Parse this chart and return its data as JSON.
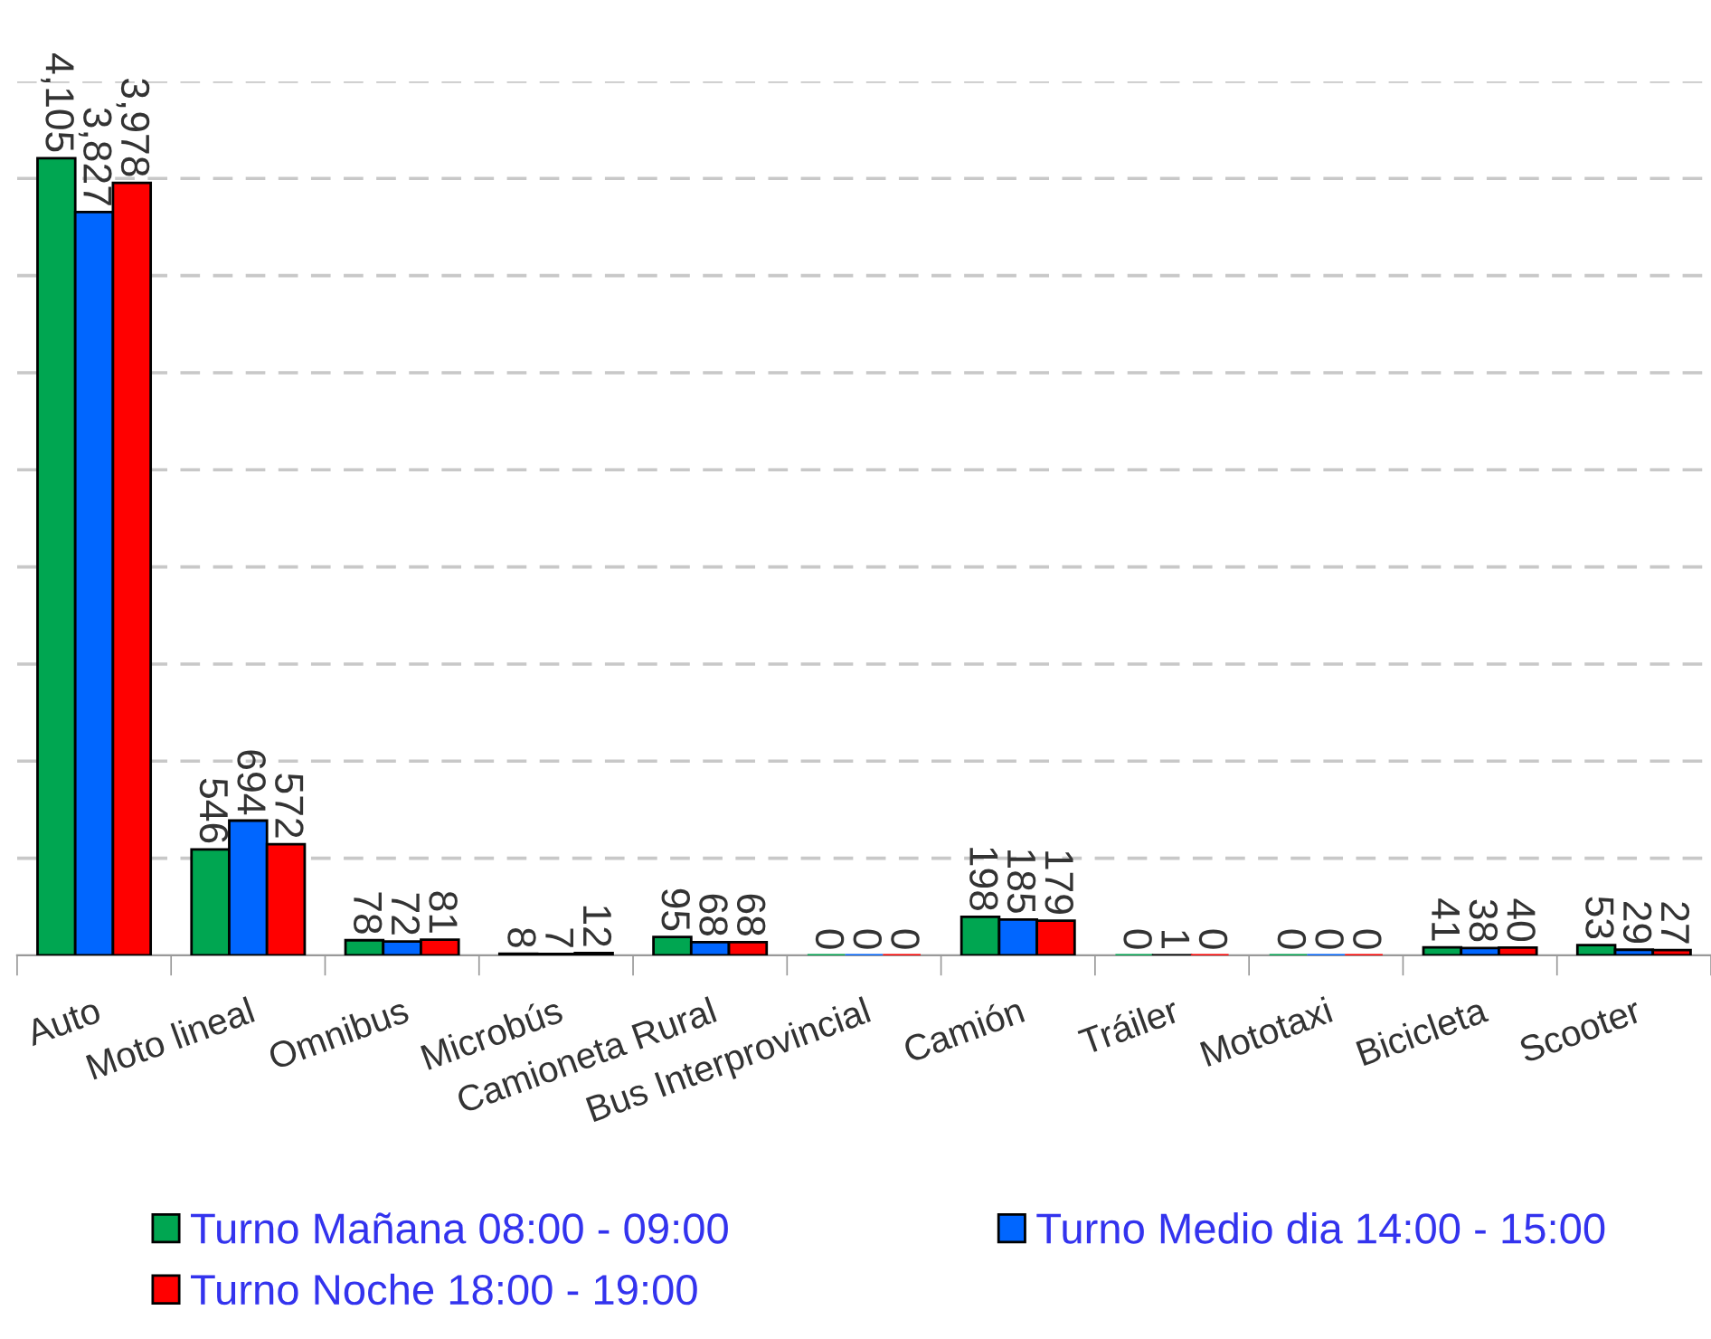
{
  "chart_data": {
    "type": "bar",
    "categories": [
      "Auto",
      "Moto lineal",
      "Omnibus",
      "Microbús",
      "Camioneta Rural",
      "Bus Interprovincial",
      "Camión",
      "Tráiler",
      "Mototaxi",
      "Bicicleta",
      "Scooter"
    ],
    "series": [
      {
        "name": "Turno Mañana 08:00 - 09:00",
        "color": "#00a651",
        "values": [
          4105,
          546,
          78,
          8,
          95,
          0,
          198,
          0,
          0,
          41,
          53
        ],
        "value_labels": [
          "4,105",
          "546",
          "78",
          "8",
          "95",
          "0",
          "198",
          "0",
          "0",
          "41",
          "53"
        ]
      },
      {
        "name": "Turno Medio dia 14:00 - 15:00",
        "color": "#0066ff",
        "values": [
          3827,
          694,
          72,
          7,
          68,
          0,
          185,
          1,
          0,
          38,
          29
        ],
        "value_labels": [
          "3,827",
          "694",
          "72",
          "7",
          "68",
          "0",
          "185",
          "1",
          "0",
          "38",
          "29"
        ]
      },
      {
        "name": "Turno Noche 18:00 - 19:00",
        "color": "#ff0000",
        "values": [
          3978,
          572,
          81,
          12,
          68,
          0,
          179,
          0,
          0,
          40,
          27
        ],
        "value_labels": [
          "3,978",
          "572",
          "81",
          "12",
          "68",
          "0",
          "179",
          "0",
          "0",
          "40",
          "27"
        ]
      }
    ],
    "ylim": [
      0,
      4500
    ],
    "yticks": [
      {
        "value": 500,
        "label": null
      },
      {
        "value": 1000,
        "label": null
      },
      {
        "value": 1500,
        "label": null
      },
      {
        "value": 2000,
        "label": null
      },
      {
        "value": 2500,
        "label": null
      },
      {
        "value": 3000,
        "label": null
      },
      {
        "value": 3500,
        "label": null
      },
      {
        "value": 4000,
        "label": null
      },
      {
        "value": 4500,
        "label": null
      }
    ],
    "grid": "y",
    "legend": "bottom",
    "tick_labels": "x"
  }
}
